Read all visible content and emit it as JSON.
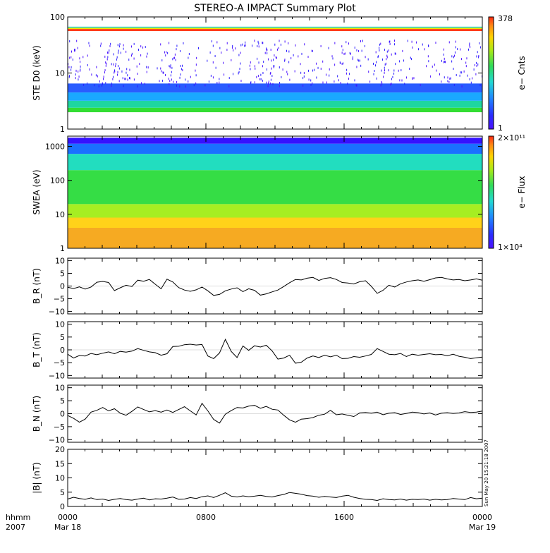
{
  "chart_data": {
    "title": "STEREO-A IMPACT Summary Plot",
    "time_axis": {
      "left_label_line1": "hhmm",
      "left_label_line2": "2007",
      "ticks": [
        {
          "hhmm": "0000",
          "date": "Mar 18"
        },
        {
          "hhmm": "0800",
          "date": ""
        },
        {
          "hhmm": "1600",
          "date": ""
        },
        {
          "hhmm": "0000",
          "date": "Mar 19"
        }
      ],
      "hours_range": [
        0,
        24
      ]
    },
    "panels": [
      {
        "type": "heatmap",
        "ylabel": "STE D0 (keV)",
        "yscale": "log",
        "ylim": [
          1,
          100
        ],
        "yticks": [
          "1",
          "10",
          "100"
        ],
        "colorbar": {
          "label": "e− Cnts",
          "max_label": "378",
          "min_label": "1"
        },
        "bands": [
          {
            "from": 2.0,
            "to": 2.4,
            "color": "#33dd33"
          },
          {
            "from": 2.4,
            "to": 3.2,
            "color": "#1ed6a0"
          },
          {
            "from": 3.2,
            "to": 4.5,
            "color": "#1aa8ff"
          },
          {
            "from": 4.5,
            "to": 6.5,
            "color": "#2a5cff"
          },
          {
            "from": 56,
            "to": 61,
            "color": "#ff3b1a"
          },
          {
            "from": 61,
            "to": 64,
            "color": "#f3e000"
          },
          {
            "from": 64,
            "to": 67,
            "color": "#27d7c8"
          }
        ]
      },
      {
        "type": "heatmap",
        "ylabel": "SWEA (eV)",
        "yscale": "log",
        "ylim": [
          1,
          2000
        ],
        "yticks": [
          "1",
          "10",
          "100",
          "1000"
        ],
        "colorbar": {
          "label": "e− Flux",
          "max_label": "2×10¹¹",
          "min_label": "1×10⁴"
        },
        "bands": [
          {
            "from": 1,
            "to": 4,
            "color": "#f6aa22"
          },
          {
            "from": 4,
            "to": 8,
            "color": "#ffd21a"
          },
          {
            "from": 8,
            "to": 20,
            "color": "#a6ee22"
          },
          {
            "from": 20,
            "to": 200,
            "color": "#35dd45"
          },
          {
            "from": 200,
            "to": 600,
            "color": "#22ddbf"
          },
          {
            "from": 600,
            "to": 1200,
            "color": "#1a70ff"
          },
          {
            "from": 1200,
            "to": 1800,
            "color": "#3512ff"
          }
        ]
      },
      {
        "type": "line",
        "ylabel": "B_R (nT)",
        "ylim": [
          -11,
          11
        ],
        "yticks": [
          "−10",
          "−5",
          "0",
          "5",
          "10"
        ],
        "y": [
          -0.5,
          -1,
          -0.3,
          -1.2,
          -0.4,
          1.5,
          1.8,
          1.4,
          -1.8,
          -0.7,
          0.3,
          -0.2,
          2.3,
          1.9,
          2.6,
          0.7,
          -1.1,
          2.7,
          1.6,
          -0.6,
          -1.6,
          -2.1,
          -1.5,
          -0.4,
          -1.9,
          -3.7,
          -3.3,
          -1.9,
          -1.2,
          -0.7,
          -2.2,
          -1.1,
          -1.7,
          -3.6,
          -3.1,
          -2.3,
          -1.6,
          -0.2,
          1.3,
          2.6,
          2.4,
          3.1,
          3.4,
          2.2,
          3,
          3.3,
          2.6,
          1.4,
          1.2,
          0.8,
          1.7,
          2.1,
          -0.1,
          -2.9,
          -1.7,
          0.3,
          -0.4,
          0.9,
          1.6,
          2.1,
          2.4,
          1.9,
          2.5,
          3.2,
          3.4,
          2.8,
          2.4,
          2.6,
          2.1,
          2.4,
          2.8,
          2.3
        ]
      },
      {
        "type": "line",
        "ylabel": "B_T (nT)",
        "ylim": [
          -11,
          11
        ],
        "yticks": [
          "−10",
          "−5",
          "0",
          "5",
          "10"
        ],
        "y": [
          -1.7,
          -3.2,
          -2.2,
          -2.4,
          -1.4,
          -1.9,
          -1.3,
          -0.8,
          -1.5,
          -0.6,
          -0.9,
          -0.5,
          0.5,
          -0.2,
          -0.8,
          -1.1,
          -2.1,
          -1.5,
          1.3,
          1.4,
          2.0,
          2.2,
          1.9,
          2.1,
          -2.4,
          -3.4,
          -1.2,
          4.1,
          -0.6,
          -3.0,
          1.5,
          -0.2,
          1.6,
          1.1,
          1.8,
          -0.4,
          -3.6,
          -3.2,
          -2.1,
          -5.2,
          -4.8,
          -3.2,
          -2.4,
          -3.0,
          -2.1,
          -2.7,
          -2.1,
          -3.4,
          -3.3,
          -2.6,
          -2.9,
          -2.4,
          -1.8,
          0.5,
          -0.6,
          -1.7,
          -1.9,
          -1.4,
          -2.6,
          -1.7,
          -2.1,
          -1.8,
          -1.5,
          -1.9,
          -1.8,
          -2.3,
          -1.7,
          -2.5,
          -2.9,
          -3.4,
          -3.1,
          -2.8
        ]
      },
      {
        "type": "line",
        "ylabel": "B_N (nT)",
        "ylim": [
          -11,
          11
        ],
        "yticks": [
          "−10",
          "−5",
          "0",
          "5",
          "10"
        ],
        "y": [
          -0.7,
          -1.8,
          -3.3,
          -2.1,
          0.6,
          1.3,
          2.4,
          1.1,
          1.9,
          0.2,
          -0.6,
          0.9,
          2.6,
          1.6,
          0.7,
          1.2,
          0.6,
          1.4,
          0.5,
          1.6,
          2.7,
          1.1,
          -0.5,
          4.0,
          1.1,
          -2.2,
          -3.6,
          -0.2,
          1.2,
          2.4,
          2.2,
          2.9,
          3.2,
          2.1,
          2.8,
          1.7,
          1.4,
          -0.6,
          -2.4,
          -3.3,
          -2.1,
          -1.9,
          -1.5,
          -0.6,
          -0.2,
          1.3,
          -0.4,
          -0.1,
          -0.6,
          -1.1,
          0.3,
          0.5,
          0.2,
          0.6,
          -0.4,
          0.2,
          0.4,
          -0.3,
          0.1,
          0.6,
          0.4,
          -0.1,
          0.3,
          -0.5,
          0.2,
          0.4,
          0.1,
          0.3,
          0.8,
          0.5,
          0.6,
          1.0
        ]
      },
      {
        "type": "line",
        "ylabel": "|B| (nT)",
        "ylim": [
          0,
          20
        ],
        "yticks": [
          "0",
          "5",
          "10",
          "15",
          "20"
        ],
        "timestamp": "Sun May 20 15:21:18 2007",
        "y": [
          2.6,
          3.2,
          2.8,
          2.5,
          3.0,
          2.4,
          2.6,
          2.1,
          2.5,
          2.8,
          2.4,
          2.2,
          2.6,
          2.9,
          2.3,
          2.7,
          2.6,
          2.9,
          3.3,
          2.5,
          2.6,
          3.1,
          2.8,
          3.4,
          3.7,
          3.1,
          3.9,
          4.8,
          3.6,
          3.3,
          3.7,
          3.4,
          3.6,
          3.9,
          3.5,
          3.3,
          3.8,
          4.2,
          4.9,
          4.6,
          4.3,
          3.8,
          3.6,
          3.2,
          3.5,
          3.3,
          3.1,
          3.6,
          3.9,
          3.2,
          2.8,
          2.5,
          2.4,
          2.1,
          2.7,
          2.4,
          2.3,
          2.6,
          2.2,
          2.5,
          2.4,
          2.6,
          2.2,
          2.5,
          2.3,
          2.4,
          2.8,
          2.6,
          2.4,
          3.1,
          2.7,
          2.9
        ]
      }
    ]
  }
}
